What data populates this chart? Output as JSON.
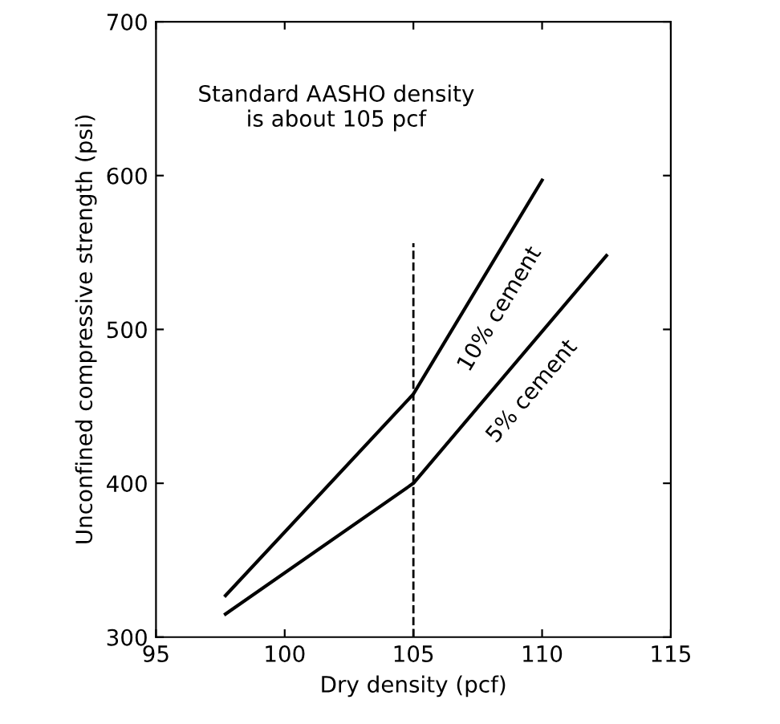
{
  "chart_data": {
    "type": "line",
    "xlabel": "Dry density (pcf)",
    "ylabel": "Unconfined compressive strength (psi)",
    "annotations": [
      "Standard AASHO density\nis about 105 pcf"
    ],
    "series": [
      {
        "name": "10% cement",
        "color": "#000000",
        "x": [
          97.7,
          105,
          110
        ],
        "values": [
          327,
          458,
          597
        ]
      },
      {
        "name": "5% cement",
        "color": "#000000",
        "x": [
          97.7,
          105,
          112.5
        ],
        "values": [
          315,
          400,
          548
        ]
      }
    ],
    "xlim": [
      95,
      115
    ],
    "xticks": [
      95,
      100,
      105,
      110,
      115
    ],
    "ylim": [
      300,
      700
    ],
    "yticks": [
      300,
      400,
      500,
      600,
      700
    ],
    "ref_lines": [
      {
        "axis": "x",
        "value": 105,
        "line_style": "dashed",
        "color": "#000000"
      }
    ],
    "grid": false,
    "legend": false,
    "marker": "none",
    "line_style": "solid"
  }
}
